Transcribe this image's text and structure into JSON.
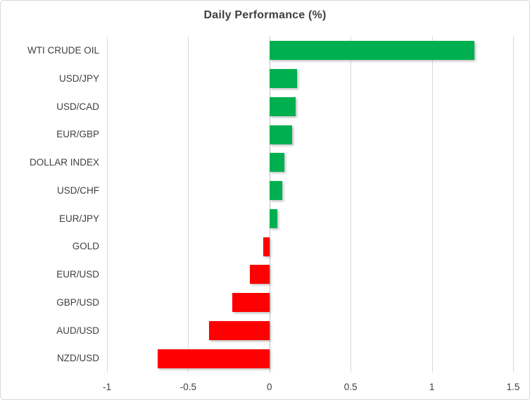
{
  "chart_data": {
    "type": "bar",
    "orientation": "horizontal",
    "title": "Daily Performance (%)",
    "categories": [
      "WTI CRUDE OIL",
      "USD/JPY",
      "USD/CAD",
      "EUR/GBP",
      "DOLLAR INDEX",
      "USD/CHF",
      "EUR/JPY",
      "GOLD",
      "EUR/USD",
      "GBP/USD",
      "AUD/USD",
      "NZD/USD"
    ],
    "values": [
      1.26,
      0.17,
      0.16,
      0.14,
      0.09,
      0.08,
      0.05,
      -0.04,
      -0.12,
      -0.23,
      -0.37,
      -0.69
    ],
    "xlabel": "",
    "ylabel": "",
    "xlim": [
      -1,
      1.5
    ],
    "x_ticks": [
      -1,
      -0.5,
      0,
      0.5,
      1,
      1.5
    ],
    "x_tick_labels": [
      "-1",
      "-0.5",
      "0",
      "0.5",
      "1",
      "1.5"
    ],
    "grid": true,
    "legend": false,
    "colors": {
      "positive": "#00B050",
      "negative": "#FF0000"
    }
  },
  "style": {
    "gridline_color": "#D9D9D9",
    "zero_line_color": "#BFBFBF",
    "text_color": "#3F3F3F",
    "frame_border_color": "#D9D9D9",
    "background_color": "#FFFFFF"
  }
}
